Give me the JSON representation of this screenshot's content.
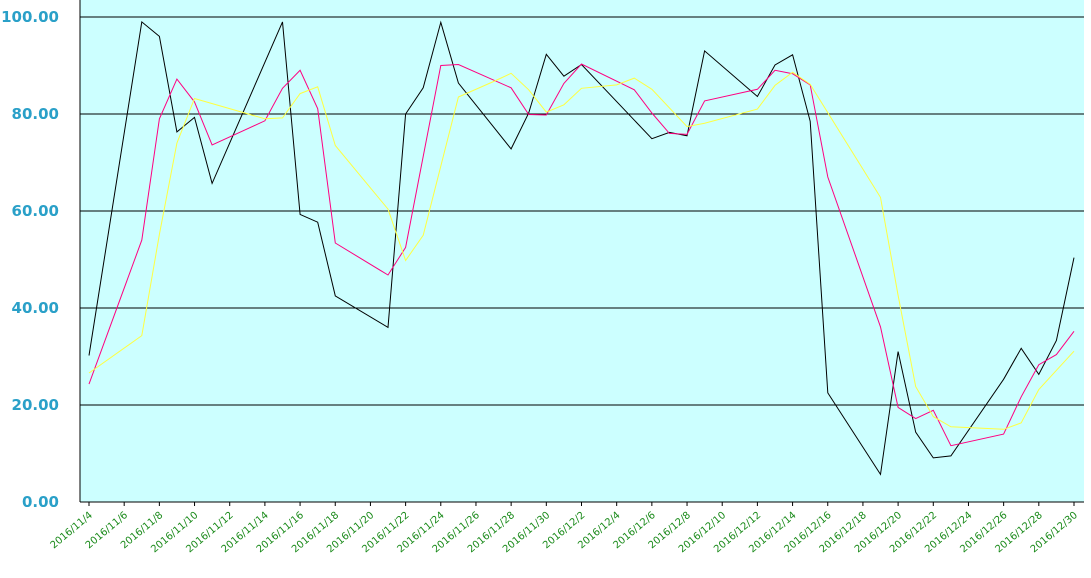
{
  "chart_data": {
    "type": "line",
    "title": "",
    "xlabel": "",
    "ylabel": "",
    "ylim": [
      0,
      100
    ],
    "yticks": [
      "0.00",
      "20.00",
      "40.00",
      "60.00",
      "80.00",
      "100.00"
    ],
    "grid": true,
    "legend": "none",
    "colors": {
      "plot_background": "#ccffff",
      "gridline": "#000000",
      "ytick_text": "#2aa0c8",
      "xtick_text": "#1a8a1a"
    },
    "x_start": "2016/11/4",
    "x_end": "2016/12/30",
    "xticks": [
      "2016/11/4",
      "2016/11/6",
      "2016/11/8",
      "2016/11/10",
      "2016/11/12",
      "2016/11/14",
      "2016/11/16",
      "2016/11/18",
      "2016/11/20",
      "2016/11/22",
      "2016/11/24",
      "2016/11/26",
      "2016/11/28",
      "2016/11/30",
      "2016/12/2",
      "2016/12/4",
      "2016/12/6",
      "2016/12/8",
      "2016/12/10",
      "2016/12/12",
      "2016/12/14",
      "2016/12/16",
      "2016/12/18",
      "2016/12/20",
      "2016/12/22",
      "2016/12/24",
      "2016/12/26",
      "2016/12/28",
      "2016/12/30"
    ],
    "series": [
      {
        "color": "#000000",
        "points": [
          [
            "2016/11/4",
            30.2
          ],
          [
            "2016/11/7",
            99.0
          ],
          [
            "2016/11/8",
            96.0
          ],
          [
            "2016/11/9",
            76.3
          ],
          [
            "2016/11/10",
            79.3
          ],
          [
            "2016/11/11",
            65.7
          ],
          [
            "2016/11/15",
            99.0
          ],
          [
            "2016/11/16",
            59.3
          ],
          [
            "2016/11/17",
            57.7
          ],
          [
            "2016/11/18",
            42.5
          ],
          [
            "2016/11/21",
            36.0
          ],
          [
            "2016/11/22",
            80.0
          ],
          [
            "2016/11/23",
            85.4
          ],
          [
            "2016/11/24",
            98.9
          ],
          [
            "2016/11/25",
            86.4
          ],
          [
            "2016/11/28",
            72.8
          ],
          [
            "2016/11/29",
            80.2
          ],
          [
            "2016/11/30",
            92.3
          ],
          [
            "2016/12/1",
            87.8
          ],
          [
            "2016/12/2",
            90.2
          ],
          [
            "2016/12/6",
            74.9
          ],
          [
            "2016/12/7",
            76.2
          ],
          [
            "2016/12/8",
            75.5
          ],
          [
            "2016/12/9",
            93.0
          ],
          [
            "2016/12/12",
            83.6
          ],
          [
            "2016/12/13",
            90.1
          ],
          [
            "2016/12/14",
            92.2
          ],
          [
            "2016/12/15",
            78.5
          ],
          [
            "2016/12/16",
            22.5
          ],
          [
            "2016/12/19",
            5.7
          ],
          [
            "2016/12/20",
            31.0
          ],
          [
            "2016/12/21",
            14.4
          ],
          [
            "2016/12/22",
            9.1
          ],
          [
            "2016/12/23",
            9.5
          ],
          [
            "2016/12/26",
            25.3
          ],
          [
            "2016/12/27",
            31.7
          ],
          [
            "2016/12/28",
            26.3
          ],
          [
            "2016/12/29",
            33.3
          ],
          [
            "2016/12/30",
            50.4
          ]
        ]
      },
      {
        "color": "#ff0080",
        "points": [
          [
            "2016/11/4",
            24.3
          ],
          [
            "2016/11/7",
            54.0
          ],
          [
            "2016/11/8",
            79.0
          ],
          [
            "2016/11/9",
            87.2
          ],
          [
            "2016/11/10",
            82.5
          ],
          [
            "2016/11/11",
            73.6
          ],
          [
            "2016/11/14",
            78.6
          ],
          [
            "2016/11/15",
            85.3
          ],
          [
            "2016/11/16",
            89.0
          ],
          [
            "2016/11/17",
            81.1
          ],
          [
            "2016/11/18",
            53.4
          ],
          [
            "2016/11/21",
            46.8
          ],
          [
            "2016/11/22",
            52.5
          ],
          [
            "2016/11/24",
            90.0
          ],
          [
            "2016/11/25",
            90.2
          ],
          [
            "2016/11/28",
            85.4
          ],
          [
            "2016/11/29",
            79.9
          ],
          [
            "2016/11/30",
            79.8
          ],
          [
            "2016/12/1",
            86.3
          ],
          [
            "2016/12/2",
            90.3
          ],
          [
            "2016/12/5",
            85.0
          ],
          [
            "2016/12/6",
            80.2
          ],
          [
            "2016/12/7",
            76.0
          ],
          [
            "2016/12/8",
            75.8
          ],
          [
            "2016/12/9",
            82.7
          ],
          [
            "2016/12/12",
            85.1
          ],
          [
            "2016/12/13",
            89.0
          ],
          [
            "2016/12/14",
            88.3
          ],
          [
            "2016/12/15",
            86.0
          ],
          [
            "2016/12/16",
            67.0
          ],
          [
            "2016/12/19",
            36.1
          ],
          [
            "2016/12/20",
            19.5
          ],
          [
            "2016/12/21",
            17.2
          ],
          [
            "2016/12/22",
            18.9
          ],
          [
            "2016/12/23",
            11.6
          ],
          [
            "2016/12/26",
            14.0
          ],
          [
            "2016/12/27",
            21.7
          ],
          [
            "2016/12/28",
            28.3
          ],
          [
            "2016/12/29",
            30.4
          ],
          [
            "2016/12/30",
            35.2
          ]
        ]
      },
      {
        "color": "#ffff40",
        "points": [
          [
            "2016/11/4",
            26.6
          ],
          [
            "2016/11/7",
            34.3
          ],
          [
            "2016/11/8",
            55.2
          ],
          [
            "2016/11/9",
            74.0
          ],
          [
            "2016/11/10",
            83.2
          ],
          [
            "2016/11/14",
            79.0
          ],
          [
            "2016/11/15",
            79.2
          ],
          [
            "2016/11/16",
            84.2
          ],
          [
            "2016/11/17",
            85.6
          ],
          [
            "2016/11/18",
            73.5
          ],
          [
            "2016/11/21",
            60.4
          ],
          [
            "2016/11/22",
            49.8
          ],
          [
            "2016/11/23",
            55.0
          ],
          [
            "2016/11/25",
            83.5
          ],
          [
            "2016/11/27",
            86.7
          ],
          [
            "2016/11/28",
            88.4
          ],
          [
            "2016/11/29",
            85.0
          ],
          [
            "2016/11/30",
            80.4
          ],
          [
            "2016/12/1",
            81.9
          ],
          [
            "2016/12/2",
            85.3
          ],
          [
            "2016/12/4",
            86.0
          ],
          [
            "2016/12/5",
            87.4
          ],
          [
            "2016/12/6",
            85.1
          ],
          [
            "2016/12/8",
            77.4
          ],
          [
            "2016/12/9",
            78.1
          ],
          [
            "2016/12/12",
            81.0
          ],
          [
            "2016/12/13",
            85.9
          ],
          [
            "2016/12/14",
            88.6
          ],
          [
            "2016/12/15",
            86.1
          ],
          [
            "2016/12/19",
            62.8
          ],
          [
            "2016/12/20",
            42.6
          ],
          [
            "2016/12/21",
            23.8
          ],
          [
            "2016/12/22",
            17.6
          ],
          [
            "2016/12/23",
            15.5
          ],
          [
            "2016/12/26",
            15.0
          ],
          [
            "2016/12/27",
            16.3
          ],
          [
            "2016/12/28",
            23.2
          ],
          [
            "2016/12/30",
            31.1
          ]
        ]
      }
    ]
  }
}
